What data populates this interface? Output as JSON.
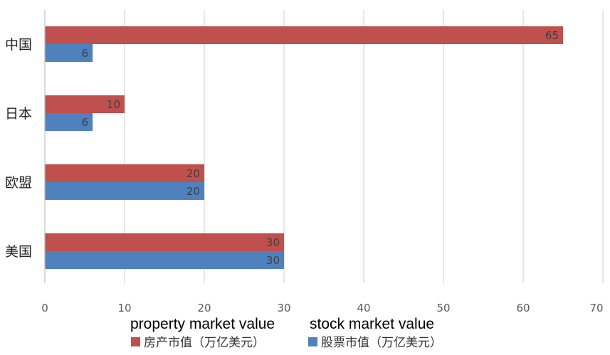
{
  "chart_data": {
    "type": "bar",
    "orientation": "horizontal",
    "categories": [
      "中国",
      "日本",
      "欧盟",
      "美国"
    ],
    "series": [
      {
        "name": "房产市值（万亿美元）",
        "color": "#c0504d",
        "values": [
          65,
          10,
          20,
          30
        ]
      },
      {
        "name": "股票市值（万亿美元）",
        "color": "#4f81bd",
        "values": [
          6,
          6,
          20,
          30
        ]
      }
    ],
    "xlim": [
      0,
      70
    ],
    "xticks": [
      0,
      10,
      20,
      30,
      40,
      50,
      60,
      70
    ],
    "grid": "vertical",
    "legend": "bottom",
    "annotations": [
      "property market value",
      "stock market value"
    ]
  }
}
